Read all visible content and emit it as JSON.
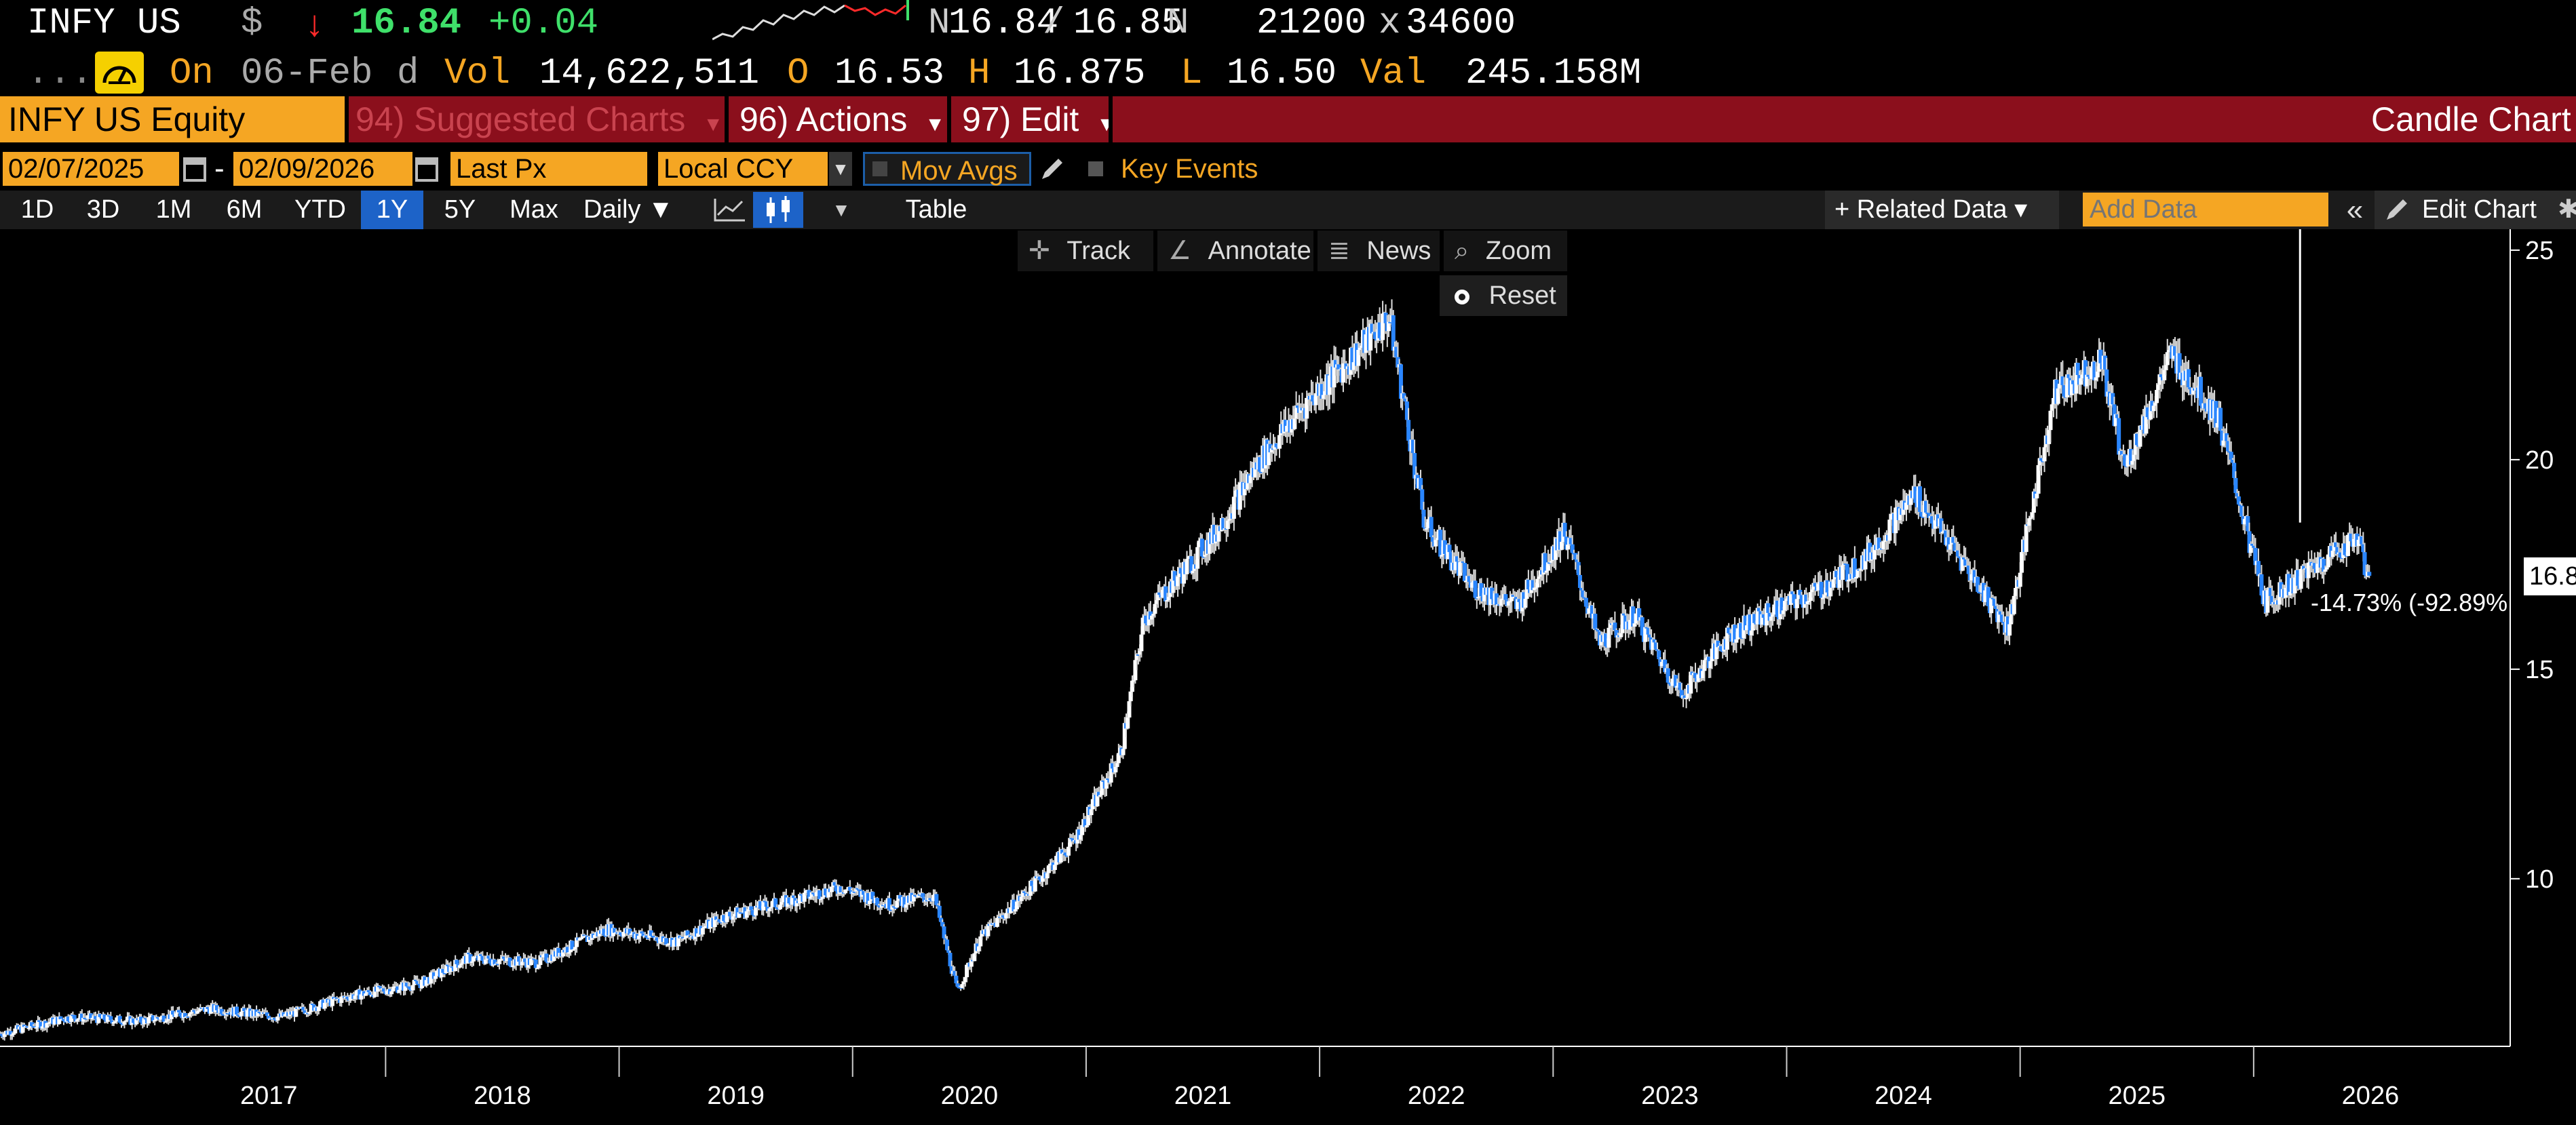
{
  "header": {
    "ticker": "INFY US",
    "currency": "$",
    "arrow": "↓",
    "last": "16.84",
    "change": "+0.04",
    "bid_ask_prefix": "N",
    "bid": "16.84",
    "separator": "/",
    "ask": "16.85",
    "ask_suffix": "N",
    "bid_size": "21200",
    "size_sep": "x",
    "ask_size": "34600",
    "dots": ".....",
    "on_label": "On",
    "on_date": "06-Feb",
    "period": "d",
    "vol_label": "Vol",
    "vol": "14,622,511",
    "o_label": "O",
    "open": "16.53",
    "h_label": "H",
    "high": "16.875",
    "l_label": "L",
    "low": "16.50",
    "val_label": "Val",
    "value": "245.158M"
  },
  "command_bar": {
    "security": "INFY US Equity",
    "suggested": "94) Suggested Charts",
    "actions": "96) Actions",
    "edit": "97) Edit",
    "title": "Candle Chart"
  },
  "options": {
    "start_date": "02/07/2025",
    "dash": "-",
    "end_date": "02/09/2026",
    "price_field": "Last Px",
    "currency": "Local CCY",
    "mov_avgs": "Mov Avgs",
    "key_events": "Key Events"
  },
  "range_bar": {
    "ranges": [
      "1D",
      "3D",
      "1M",
      "6M",
      "YTD",
      "1Y",
      "5Y",
      "Max"
    ],
    "active": "1Y",
    "frequency": "Daily ▼",
    "table": "Table",
    "related": "+ Related Data ▾",
    "add_data_placeholder": "Add Data",
    "edit_chart": "Edit Chart"
  },
  "toolbar": {
    "track": "Track",
    "annotate": "Annotate",
    "news": "News",
    "zoom": "Zoom",
    "reset": "Reset"
  },
  "colors": {
    "accent_orange": "#f5a623",
    "bar_red": "#8b0f1c",
    "up_green": "#3fe06a",
    "down_red": "#ff2a2a",
    "candle_blue": "#2a86ff"
  },
  "chart_data": {
    "type": "line",
    "x_labels": [
      "2017",
      "2018",
      "2019",
      "2020",
      "2021",
      "2022",
      "2023",
      "2024",
      "2025",
      "2026"
    ],
    "y_ticks": [
      10,
      15,
      20,
      25
    ],
    "ylim": [
      6,
      25.5
    ],
    "last_label": "16.8",
    "change_label": "-14.73% (-92.89%",
    "series": [
      {
        "x": [
          2016.0,
          2016.3,
          2016.6,
          2016.9,
          2017.2,
          2017.5,
          2017.8,
          2018.0,
          2018.3,
          2018.6,
          2018.9,
          2019.1,
          2019.4,
          2019.6,
          2019.8,
          2020.0,
          2020.1,
          2020.2,
          2020.4,
          2020.6,
          2020.8,
          2020.9,
          2021.0,
          2021.2,
          2021.4,
          2021.6,
          2021.8,
          2021.95,
          2022.1,
          2022.3,
          2022.5,
          2022.7,
          2022.85,
          2023.0,
          2023.2,
          2023.4,
          2023.6,
          2023.8,
          2024.0,
          2024.2,
          2024.4,
          2024.6,
          2024.8,
          2025.0,
          2025.1,
          2025.3,
          2025.5,
          2025.7,
          2025.9,
          2026.1,
          2026.15
        ],
        "y": [
          6.3,
          6.7,
          6.6,
          6.9,
          6.7,
          7.2,
          7.5,
          8.1,
          8.0,
          8.8,
          8.5,
          9.1,
          9.5,
          9.8,
          9.4,
          9.6,
          7.3,
          8.6,
          9.7,
          10.9,
          13.0,
          16.2,
          16.9,
          18.2,
          20.0,
          21.4,
          22.5,
          23.4,
          18.5,
          17.0,
          16.5,
          18.3,
          15.6,
          16.3,
          14.4,
          15.8,
          16.4,
          16.9,
          17.7,
          19.2,
          17.6,
          16.0,
          21.6,
          22.4,
          19.8,
          22.5,
          21.0,
          16.6,
          17.4,
          18.2,
          16.84
        ]
      }
    ]
  }
}
